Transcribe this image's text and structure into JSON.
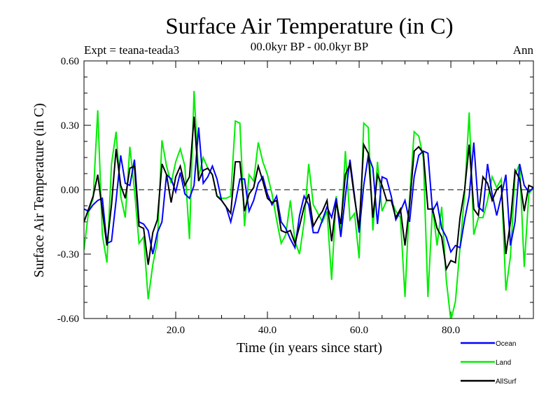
{
  "chart_data": {
    "type": "line",
    "title": "Surface Air Temperature (in C)",
    "subtitle": "00.0kyr BP - 00.0kyr BP",
    "left_label": "Expt = teana-teada3",
    "right_label": "Ann",
    "xlabel": "Time (in years since start)",
    "ylabel": "Surface Air Temperature (in C)",
    "xlim": [
      0,
      98
    ],
    "ylim": [
      -0.6,
      0.6
    ],
    "x_ticks": [
      20,
      40,
      60,
      80
    ],
    "x_tick_labels": [
      "20.0",
      "40.0",
      "60.0",
      "80.0"
    ],
    "y_ticks": [
      -0.6,
      -0.3,
      0.0,
      0.3,
      0.6
    ],
    "y_tick_labels": [
      "-0.60",
      "-0.30",
      "0.00",
      "0.30",
      "0.60"
    ],
    "zero_line": "dashed",
    "legend_position": "bottom-right",
    "x": [
      0,
      1,
      2,
      3,
      4,
      5,
      6,
      7,
      8,
      9,
      10,
      11,
      12,
      13,
      14,
      15,
      16,
      17,
      18,
      19,
      20,
      21,
      22,
      23,
      24,
      25,
      26,
      27,
      28,
      29,
      30,
      31,
      32,
      33,
      34,
      35,
      36,
      37,
      38,
      39,
      40,
      41,
      42,
      43,
      44,
      45,
      46,
      47,
      48,
      49,
      50,
      51,
      52,
      53,
      54,
      55,
      56,
      57,
      58,
      59,
      60,
      61,
      62,
      63,
      64,
      65,
      66,
      67,
      68,
      69,
      70,
      71,
      72,
      73,
      74,
      75,
      76,
      77,
      78,
      79,
      80,
      81,
      82,
      83,
      84,
      85,
      86,
      87,
      88,
      89,
      90,
      91,
      92,
      93,
      94,
      95,
      96,
      97,
      98
    ],
    "series": [
      {
        "name": "Ocean",
        "color": "#0000ff",
        "values": [
          -0.09,
          -0.1,
          -0.07,
          -0.05,
          -0.04,
          -0.25,
          -0.24,
          -0.05,
          0.16,
          0.03,
          0.02,
          0.14,
          -0.15,
          -0.16,
          -0.19,
          -0.3,
          -0.2,
          -0.15,
          0.07,
          0.05,
          -0.01,
          0.08,
          -0.02,
          -0.04,
          0.02,
          0.29,
          0.03,
          0.06,
          0.11,
          0.05,
          -0.05,
          -0.08,
          -0.15,
          -0.06,
          0.05,
          0.05,
          -0.1,
          -0.05,
          0.03,
          0.06,
          -0.02,
          -0.07,
          -0.03,
          -0.15,
          -0.18,
          -0.23,
          -0.27,
          -0.12,
          -0.03,
          -0.07,
          -0.2,
          -0.2,
          -0.14,
          -0.08,
          -0.13,
          -0.04,
          -0.22,
          -0.03,
          0.14,
          -0.03,
          -0.2,
          0.02,
          0.16,
          0.1,
          -0.16,
          0.06,
          0.05,
          -0.03,
          -0.14,
          -0.1,
          -0.05,
          -0.15,
          0.06,
          0.16,
          0.18,
          0.17,
          -0.1,
          -0.06,
          -0.18,
          -0.22,
          -0.29,
          -0.26,
          -0.27,
          -0.14,
          -0.03,
          0.22,
          -0.08,
          -0.1,
          0.12,
          -0.02,
          -0.12,
          -0.03,
          0.07,
          -0.26,
          -0.15,
          0.12,
          0.02,
          -0.01,
          0.01
        ]
      },
      {
        "name": "Land",
        "color": "#00ee00",
        "values": [
          -0.28,
          -0.1,
          -0.04,
          0.37,
          -0.21,
          -0.34,
          0.12,
          0.27,
          -0.03,
          -0.13,
          0.2,
          0.0,
          -0.25,
          -0.22,
          -0.51,
          -0.35,
          -0.24,
          0.23,
          0.11,
          0.03,
          0.13,
          0.19,
          0.11,
          -0.23,
          0.46,
          0.06,
          0.15,
          0.1,
          0.07,
          -0.03,
          -0.04,
          -0.04,
          -0.03,
          0.32,
          0.31,
          -0.17,
          0.07,
          0.04,
          0.22,
          0.13,
          0.07,
          -0.02,
          -0.14,
          -0.25,
          -0.21,
          -0.05,
          -0.24,
          -0.3,
          -0.15,
          0.12,
          -0.07,
          -0.11,
          -0.15,
          -0.1,
          -0.42,
          -0.03,
          -0.2,
          0.18,
          -0.14,
          -0.11,
          -0.32,
          0.31,
          0.29,
          -0.19,
          0.13,
          -0.1,
          -0.05,
          -0.05,
          -0.1,
          -0.13,
          -0.5,
          -0.04,
          0.27,
          0.25,
          0.15,
          -0.5,
          -0.08,
          -0.26,
          -0.08,
          -0.42,
          -0.61,
          -0.52,
          -0.27,
          -0.02,
          0.36,
          -0.21,
          -0.13,
          -0.13,
          -0.05,
          0.06,
          0.01,
          0.05,
          -0.47,
          -0.31,
          0.07,
          0.12,
          -0.36,
          -0.02,
          0.01
        ]
      },
      {
        "name": "AllSurf",
        "color": "#000000",
        "values": [
          -0.15,
          -0.09,
          -0.03,
          0.07,
          -0.1,
          -0.26,
          -0.07,
          0.19,
          0.02,
          -0.04,
          0.1,
          0.11,
          -0.17,
          -0.18,
          -0.35,
          -0.2,
          -0.14,
          0.12,
          0.07,
          -0.06,
          0.06,
          0.11,
          0.02,
          0.06,
          0.34,
          0.04,
          0.09,
          0.1,
          0.07,
          -0.03,
          -0.05,
          -0.08,
          -0.11,
          0.13,
          0.13,
          -0.1,
          -0.02,
          0.01,
          0.11,
          0.04,
          -0.04,
          -0.06,
          -0.05,
          -0.19,
          -0.2,
          -0.19,
          -0.25,
          -0.17,
          -0.08,
          -0.02,
          -0.17,
          -0.13,
          -0.1,
          -0.05,
          -0.24,
          -0.06,
          -0.16,
          0.07,
          0.12,
          -0.04,
          -0.18,
          0.21,
          0.17,
          -0.13,
          0.07,
          0.02,
          -0.05,
          -0.05,
          -0.13,
          -0.09,
          -0.26,
          -0.07,
          0.18,
          0.2,
          0.17,
          -0.09,
          -0.09,
          -0.18,
          -0.22,
          -0.37,
          -0.33,
          -0.34,
          -0.13,
          0.0,
          0.21,
          -0.09,
          -0.12,
          0.06,
          0.03,
          -0.05,
          0.0,
          0.02,
          -0.3,
          -0.15,
          0.09,
          0.05,
          -0.1,
          0.02,
          0.01
        ]
      }
    ]
  }
}
